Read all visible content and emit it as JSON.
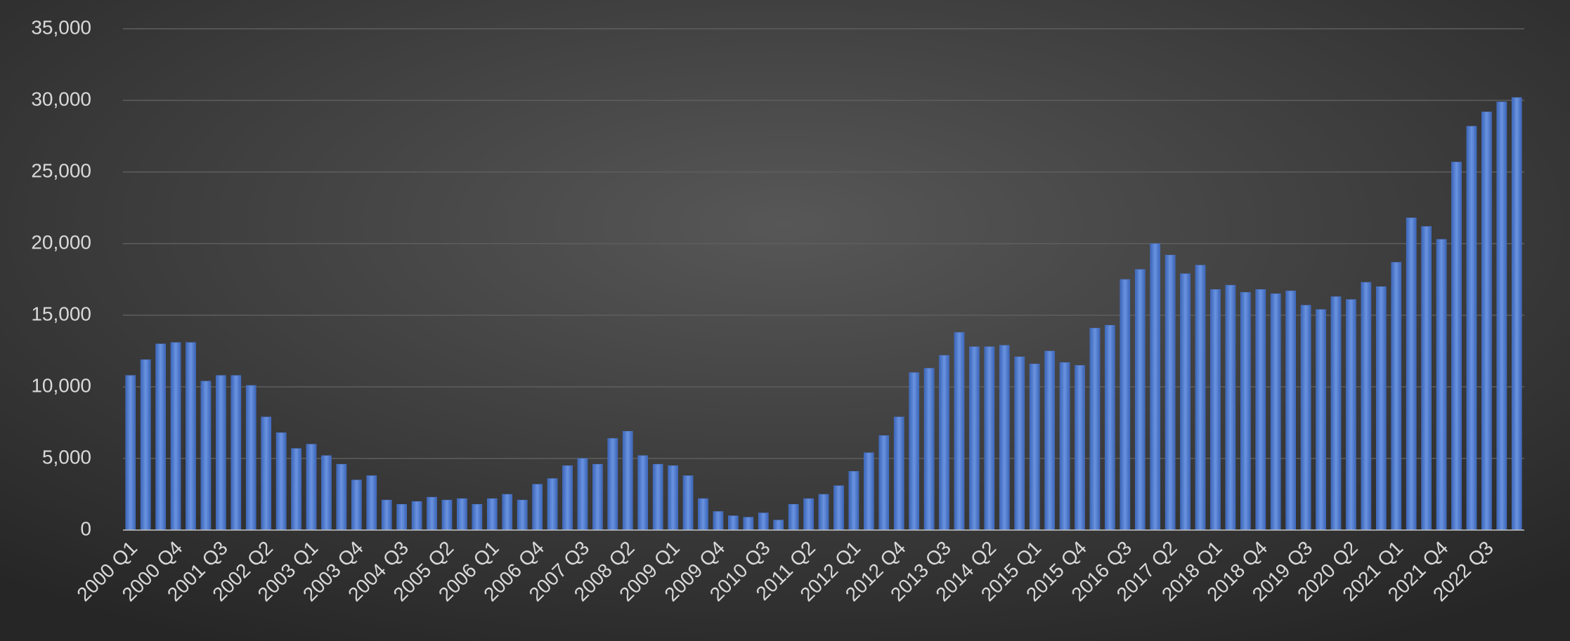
{
  "chart_data": {
    "type": "bar",
    "categories": [
      "2000 Q1",
      null,
      null,
      "2000 Q4",
      null,
      null,
      "2001 Q3",
      null,
      null,
      "2002 Q2",
      null,
      null,
      "2003 Q1",
      null,
      null,
      "2003 Q4",
      null,
      null,
      "2004 Q3",
      null,
      null,
      "2005 Q2",
      null,
      null,
      "2006 Q1",
      null,
      null,
      "2006 Q4",
      null,
      null,
      "2007 Q3",
      null,
      null,
      "2008 Q2",
      null,
      null,
      "2009 Q1",
      null,
      null,
      "2009 Q4",
      null,
      null,
      "2010 Q3",
      null,
      null,
      "2011 Q2",
      null,
      null,
      "2012 Q1",
      null,
      null,
      "2012 Q4",
      null,
      null,
      "2013 Q3",
      null,
      null,
      "2014 Q2",
      null,
      null,
      "2015 Q1",
      null,
      null,
      "2015 Q4",
      null,
      null,
      "2016 Q3",
      null,
      null,
      "2017 Q2",
      null,
      null,
      "2018 Q1",
      null,
      null,
      "2018 Q4",
      null,
      null,
      "2019 Q3",
      null,
      null,
      "2020 Q2",
      null,
      null,
      "2021 Q1",
      null,
      null,
      "2021 Q4",
      null,
      null,
      "2022 Q3",
      null,
      null
    ],
    "values": [
      10800,
      11900,
      13000,
      13100,
      13100,
      10400,
      10800,
      10800,
      10100,
      7900,
      6800,
      5700,
      6000,
      5200,
      4600,
      3500,
      3800,
      2100,
      1800,
      2000,
      2300,
      2100,
      2200,
      1800,
      2200,
      2500,
      2100,
      3200,
      3600,
      4500,
      5000,
      4600,
      6400,
      6900,
      5200,
      4600,
      4500,
      3800,
      2200,
      1300,
      1000,
      900,
      1200,
      700,
      1800,
      2200,
      2500,
      3100,
      4100,
      5400,
      6600,
      7900,
      11000,
      11300,
      12200,
      13800,
      12800,
      12800,
      12900,
      12100,
      11600,
      12500,
      11700,
      11500,
      14100,
      14300,
      17500,
      18200,
      20000,
      19200,
      17900,
      18500,
      16800,
      17100,
      16600,
      16800,
      16500,
      16700,
      15700,
      15400,
      16300,
      16100,
      17300,
      17000,
      18700,
      21800,
      21200,
      20300,
      25700,
      28200,
      29200,
      29900,
      30200
    ],
    "color": "#4a76cc",
    "ylim": [
      0,
      35000
    ],
    "yticks": [
      0,
      {
        "value": 5000,
        "label": "5,000"
      },
      {
        "value": 10000,
        "label": "10,000"
      },
      {
        "value": 15000,
        "label": "15,000"
      },
      {
        "value": 20000,
        "label": "20,000"
      },
      {
        "value": 25000,
        "label": "25,000"
      },
      {
        "value": 30000,
        "label": "30,000"
      },
      {
        "value": 35000,
        "label": "35,000"
      }
    ],
    "grid": true
  }
}
